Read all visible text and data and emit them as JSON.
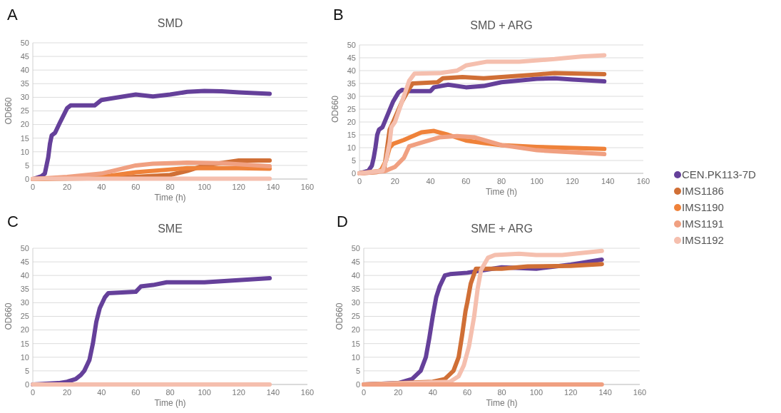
{
  "chart_data": [
    {
      "type": "line",
      "title": "SMD",
      "annotations": [
        "A"
      ],
      "xlabel": "Time (h)",
      "ylabel": "OD660",
      "xlim": [
        0,
        160
      ],
      "xticks": [
        0,
        20,
        40,
        60,
        80,
        100,
        120,
        140,
        160
      ],
      "ylim": [
        0,
        50
      ],
      "yticks": [
        0,
        5,
        10,
        15,
        20,
        25,
        30,
        35,
        40,
        45,
        50
      ],
      "grid": "y",
      "marker": "none",
      "line_style": "solid",
      "legend": "right",
      "series": [
        {
          "name": "CEN.PK113-7D",
          "color": "#65409a",
          "x": [
            0,
            5,
            7,
            9,
            10,
            11,
            13,
            16,
            20,
            22,
            36,
            40,
            45,
            60,
            70,
            80,
            90,
            100,
            110,
            120,
            138
          ],
          "values": [
            0,
            1,
            2,
            8,
            13,
            16,
            17,
            21,
            26,
            27,
            27,
            29,
            29.5,
            31,
            30.3,
            31,
            32,
            32.3,
            32.2,
            31.8,
            31.3
          ]
        },
        {
          "name": "IMS1186",
          "color": "#d06f36",
          "x": [
            0,
            40,
            60,
            80,
            90,
            100,
            120,
            138
          ],
          "values": [
            0,
            0.3,
            0.8,
            1.5,
            3,
            5,
            6.8,
            6.8
          ]
        },
        {
          "name": "IMS1190",
          "color": "#ef823a",
          "x": [
            0,
            40,
            60,
            80,
            90,
            120,
            138
          ],
          "values": [
            0,
            0.8,
            2.5,
            3.5,
            4,
            4,
            3.8
          ]
        },
        {
          "name": "IMS1191",
          "color": "#f0a081",
          "x": [
            0,
            20,
            40,
            50,
            60,
            70,
            90,
            110,
            138
          ],
          "values": [
            0,
            0.8,
            2,
            3.5,
            5,
            5.6,
            6,
            5.8,
            4.7
          ]
        },
        {
          "name": "IMS1192",
          "color": "#f5bfae",
          "x": [
            0,
            138
          ],
          "values": [
            0.1,
            0.1
          ]
        }
      ]
    },
    {
      "type": "line",
      "title": "SMD + ARG",
      "annotations": [
        "B"
      ],
      "xlabel": "Time (h)",
      "ylabel": "OD660",
      "xlim": [
        0,
        160
      ],
      "xticks": [
        0,
        20,
        40,
        60,
        80,
        100,
        120,
        140,
        160
      ],
      "ylim": [
        0,
        50
      ],
      "yticks": [
        0,
        5,
        10,
        15,
        20,
        25,
        30,
        35,
        40,
        45,
        50
      ],
      "grid": "y",
      "marker": "none",
      "line_style": "solid",
      "series": [
        {
          "color": "#65409a",
          "x": [
            0,
            5,
            7,
            8,
            9,
            10,
            11,
            13,
            16,
            19,
            22,
            24,
            28,
            40,
            42,
            50,
            60,
            70,
            80,
            100,
            110,
            120,
            138
          ],
          "values": [
            0,
            1,
            3,
            6,
            10,
            15,
            17,
            18,
            23,
            28,
            31.5,
            32.5,
            32,
            32,
            33.5,
            34.5,
            33.5,
            34,
            35.5,
            36.8,
            37,
            36.5,
            35.8
          ]
        },
        {
          "color": "#d06f36",
          "x": [
            0,
            10,
            14,
            16,
            17,
            19,
            24,
            28,
            30,
            44,
            47,
            58,
            70,
            100,
            110,
            138
          ],
          "values": [
            0,
            0.5,
            2,
            12,
            17,
            20,
            28,
            33,
            35,
            35.5,
            37,
            37.5,
            37,
            38.5,
            39,
            38.6
          ]
        },
        {
          "color": "#ef823a",
          "x": [
            0,
            12,
            15,
            17,
            19,
            25,
            35,
            42,
            50,
            60,
            70,
            80,
            100,
            138
          ],
          "values": [
            0,
            1,
            5,
            10,
            11.5,
            13,
            16,
            16.5,
            15,
            12.8,
            11.8,
            11,
            10.3,
            9.5
          ]
        },
        {
          "color": "#f0a081",
          "x": [
            0,
            14,
            20,
            25,
            28,
            35,
            45,
            55,
            65,
            80,
            100,
            120,
            138
          ],
          "values": [
            0,
            0.8,
            2.5,
            6,
            10.5,
            12,
            14,
            14.5,
            14,
            11,
            9,
            8.2,
            7.5
          ]
        },
        {
          "color": "#f5bfae",
          "x": [
            0,
            13,
            15,
            17,
            18,
            20,
            24,
            28,
            31,
            45,
            55,
            60,
            72,
            90,
            110,
            125,
            138
          ],
          "values": [
            0,
            1,
            5,
            12,
            18,
            20,
            28,
            36,
            38.8,
            39,
            40,
            42,
            43.5,
            43.5,
            44.5,
            45.5,
            46
          ]
        }
      ]
    },
    {
      "type": "line",
      "title": "SME",
      "annotations": [
        "C"
      ],
      "xlabel": "Time (h)",
      "ylabel": "OD660",
      "xlim": [
        0,
        160
      ],
      "xticks": [
        0,
        20,
        40,
        60,
        80,
        100,
        120,
        140,
        160
      ],
      "ylim": [
        0,
        50
      ],
      "yticks": [
        0,
        5,
        10,
        15,
        20,
        25,
        30,
        35,
        40,
        45,
        50
      ],
      "grid": "y",
      "marker": "none",
      "line_style": "solid",
      "series": [
        {
          "color": "#65409a",
          "x": [
            0,
            15,
            20,
            25,
            28,
            30,
            33,
            35,
            37,
            39,
            42,
            44,
            60,
            63,
            70,
            78,
            100,
            138
          ],
          "values": [
            0,
            0.5,
            1,
            2,
            3.5,
            5,
            9,
            15,
            23,
            28,
            32,
            33.5,
            34,
            36,
            36.5,
            37.5,
            37.5,
            39
          ]
        },
        {
          "color": "#f5bfae",
          "x": [
            0,
            138
          ],
          "values": [
            0,
            0
          ]
        }
      ]
    },
    {
      "type": "line",
      "title": "SME + ARG",
      "annotations": [
        "D"
      ],
      "xlabel": "Time (h)",
      "ylabel": "OD660",
      "xlim": [
        0,
        160
      ],
      "xticks": [
        0,
        20,
        40,
        60,
        80,
        100,
        120,
        140,
        160
      ],
      "ylim": [
        0,
        50
      ],
      "yticks": [
        0,
        5,
        10,
        15,
        20,
        25,
        30,
        35,
        40,
        45,
        50
      ],
      "grid": "y",
      "marker": "none",
      "line_style": "solid",
      "series": [
        {
          "color": "#65409a",
          "x": [
            0,
            20,
            28,
            33,
            36,
            38,
            40,
            42,
            44,
            47,
            50,
            60,
            70,
            80,
            100,
            120,
            138
          ],
          "values": [
            0,
            0.5,
            2,
            5,
            10,
            17,
            25,
            32,
            36,
            40,
            40.5,
            41,
            42,
            43,
            42.5,
            44,
            45.8
          ]
        },
        {
          "color": "#d06f36",
          "x": [
            0,
            40,
            47,
            52,
            55,
            57,
            59,
            60,
            62,
            65,
            70,
            80,
            95,
            120,
            138
          ],
          "values": [
            0,
            1,
            2,
            5,
            10,
            18,
            27,
            30,
            37,
            42.5,
            42.5,
            42.5,
            43.3,
            43.5,
            44.2
          ]
        },
        {
          "color": "#f5bfae",
          "x": [
            0,
            50,
            55,
            58,
            61,
            64,
            66,
            68,
            72,
            76,
            90,
            100,
            115,
            130,
            138
          ],
          "values": [
            0,
            1,
            3,
            7,
            14,
            25,
            35,
            42,
            46.5,
            47.5,
            48,
            47.5,
            47.5,
            48.5,
            49
          ]
        },
        {
          "color": "#f0a081",
          "x": [
            0,
            138
          ],
          "values": [
            0,
            0
          ]
        }
      ]
    }
  ]
}
